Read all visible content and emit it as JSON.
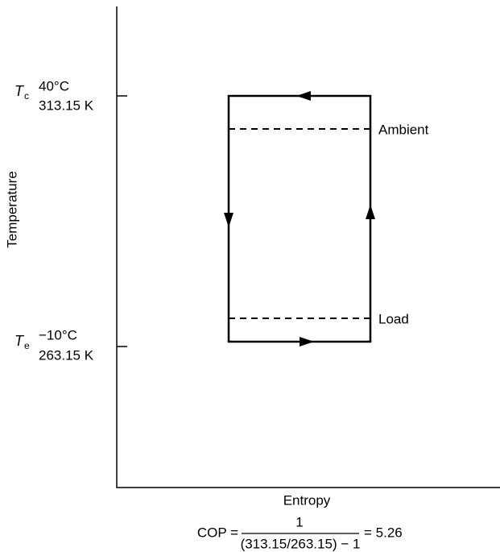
{
  "axes": {
    "y_label": "Temperature",
    "x_label": "Entropy"
  },
  "levels": [
    {
      "symbol": "T",
      "subscript": "c",
      "celsius": "40°C",
      "kelvin": "313.15 K"
    },
    {
      "symbol": "T",
      "subscript": "e",
      "celsius": "−10°C",
      "kelvin": "263.15 K"
    }
  ],
  "lines": [
    {
      "label": "Ambient"
    },
    {
      "label": "Load"
    }
  ],
  "formula": {
    "lhs": "COP =",
    "numerator": "1",
    "denominator": "(313.15/263.15) − 1",
    "result": "= 5.26"
  }
}
